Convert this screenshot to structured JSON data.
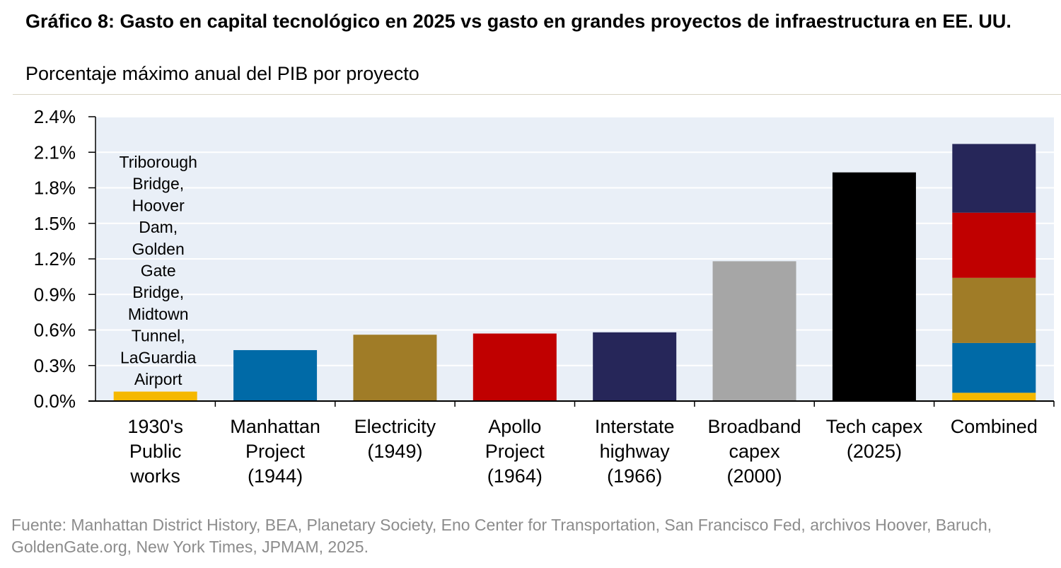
{
  "header": {
    "title": "Gráfico 8: Gasto en capital tecnológico en 2025 vs gasto en grandes proyectos de infraestructura en EE. UU.",
    "subtitle": "Porcentaje máximo anual del PIB por proyecto"
  },
  "footer": {
    "source": "Fuente: Manhattan District History, BEA, Planetary Society, Eno Center for Transportation, San Francisco Fed, archivos Hoover, Baruch, GoldenGate.org, New York Times, JPMAM, 2025."
  },
  "chart_data": {
    "type": "bar",
    "title": "Gráfico 8: Gasto en capital tecnológico en 2025 vs gasto en grandes proyectos de infraestructura en EE. UU.",
    "subtitle": "Porcentaje máximo anual del PIB por proyecto",
    "xlabel": "",
    "ylabel": "",
    "ylim": [
      0,
      2.4
    ],
    "yticks": [
      "0.0%",
      "0.3%",
      "0.6%",
      "0.9%",
      "1.2%",
      "1.5%",
      "1.8%",
      "2.1%",
      "2.4%"
    ],
    "grid": true,
    "legend": "none",
    "categories": [
      [
        "1930's",
        "Public",
        "works"
      ],
      [
        "Manhattan",
        "Project",
        "(1944)"
      ],
      [
        "Electricity",
        "(1949)"
      ],
      [
        "Apollo",
        "Project",
        "(1964)"
      ],
      [
        "Interstate",
        "highway",
        "(1966)"
      ],
      [
        "Broadband",
        "capex",
        "(2000)"
      ],
      [
        "Tech capex",
        "(2025)"
      ],
      [
        "Combined"
      ]
    ],
    "bars": [
      {
        "value": 0.08,
        "color": "#f5b800"
      },
      {
        "value": 0.43,
        "color": "#006aa7"
      },
      {
        "value": 0.56,
        "color": "#a07c27"
      },
      {
        "value": 0.57,
        "color": "#c00000"
      },
      {
        "value": 0.58,
        "color": "#262659"
      },
      {
        "value": 1.18,
        "color": "#a6a6a6"
      },
      {
        "value": 1.93,
        "color": "#000000"
      }
    ],
    "combined_segments": [
      {
        "value": 0.07,
        "color": "#f5b800"
      },
      {
        "value": 0.42,
        "color": "#006aa7"
      },
      {
        "value": 0.55,
        "color": "#a07c27"
      },
      {
        "value": 0.55,
        "color": "#c00000"
      },
      {
        "value": 0.58,
        "color": "#262659"
      }
    ],
    "annotation": [
      "Triborough",
      "Bridge,",
      "Hoover",
      "Dam,",
      "Golden",
      "Gate",
      "Bridge,",
      "Midtown",
      "Tunnel,",
      "LaGuardia",
      "Airport"
    ],
    "colors": {
      "plot_background": "#e9eff7",
      "gridline": "#ffffff",
      "axis": "#000000"
    }
  }
}
